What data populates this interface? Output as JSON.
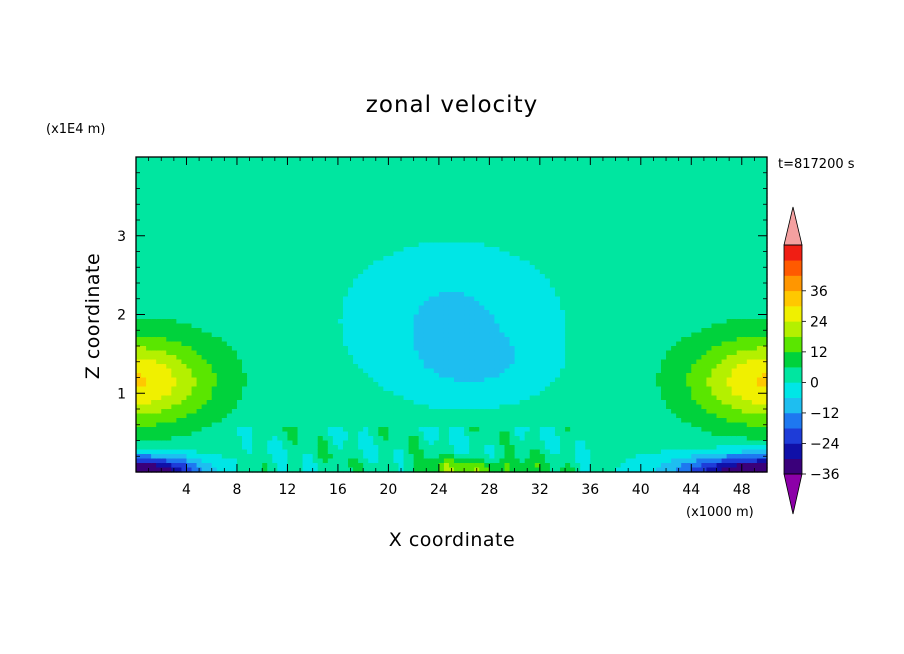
{
  "chart_data": {
    "type": "heatmap",
    "title": "zonal velocity",
    "xlabel": "X coordinate",
    "ylabel": "Z coordinate",
    "x_unit_label": "(x1000 m)",
    "y_unit_label": "(x1E4 m)",
    "time_label": "t=817200 s",
    "xlim": [
      0,
      50
    ],
    "ylim": [
      0,
      4
    ],
    "x_ticks": [
      4,
      8,
      12,
      16,
      20,
      24,
      28,
      32,
      36,
      40,
      44,
      48
    ],
    "y_ticks": [
      1,
      2,
      3
    ],
    "colorbar": {
      "min": -42,
      "max": 42,
      "step": 6,
      "tick_values": [
        36,
        24,
        12,
        0,
        -12,
        -24,
        -36
      ],
      "tick_labels": [
        "36",
        "24",
        "12",
        "0",
        "−12",
        "−24",
        "−36"
      ],
      "colors": [
        "#3a007a",
        "#1010a8",
        "#1e3cd8",
        "#1e78f0",
        "#1ebef0",
        "#00e6e6",
        "#00e6a0",
        "#00d23c",
        "#5ae600",
        "#b4f000",
        "#f0f000",
        "#ffc800",
        "#ff9600",
        "#ff5a00",
        "#f01e14"
      ],
      "over_color": "#f4a0a0",
      "under_color": "#8c00a8"
    },
    "field_description": "approximate u(x,z) contours, values in colorbar units",
    "features": [
      {
        "x": 0,
        "z": 1.15,
        "value": 28,
        "sx": 6,
        "sz": 0.55
      },
      {
        "x": 50,
        "z": 1.15,
        "value": 28,
        "sx": 6,
        "sz": 0.55
      },
      {
        "x": 0,
        "z": 0.0,
        "value": -44,
        "sx": 5,
        "sz": 0.2
      },
      {
        "x": 50,
        "z": 0.0,
        "value": -42,
        "sx": 7,
        "sz": 0.22
      },
      {
        "x": 27,
        "z": 0.05,
        "value": 14,
        "sx": 5,
        "sz": 0.12
      },
      {
        "x": 25,
        "z": 2.0,
        "value": -10,
        "sx": 8,
        "sz": 0.9
      },
      {
        "x": 27,
        "z": 1.35,
        "value": -6,
        "sx": 5,
        "sz": 0.4
      }
    ]
  }
}
